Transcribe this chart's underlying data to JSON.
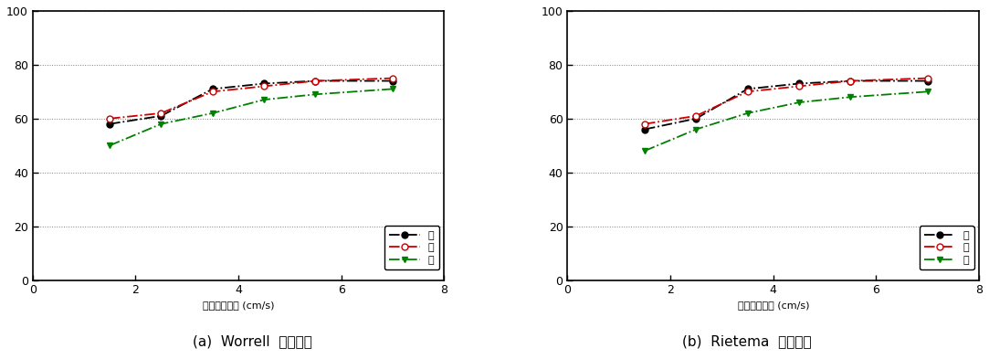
{
  "worrell": {
    "x": [
      1.5,
      2.5,
      3.5,
      4.5,
      5.5,
      7.0
    ],
    "A": [
      58,
      61,
      71,
      73,
      74,
      74
    ],
    "B": [
      60,
      62,
      70,
      72,
      74,
      75
    ],
    "C": [
      50,
      58,
      62,
      67,
      69,
      71
    ]
  },
  "rietema": {
    "x": [
      1.5,
      2.5,
      3.5,
      4.5,
      5.5,
      7.0
    ],
    "A": [
      56,
      60,
      71,
      73,
      74,
      74
    ],
    "B": [
      58,
      61,
      70,
      72,
      74,
      75
    ],
    "C": [
      48,
      56,
      62,
      66,
      68,
      70
    ]
  },
  "color_A": "#000000",
  "color_B": "#cc0000",
  "color_C": "#008000",
  "xlim": [
    0,
    8
  ],
  "ylim": [
    0,
    100
  ],
  "xticks": [
    0,
    2,
    4,
    6,
    8
  ],
  "yticks": [
    0,
    20,
    40,
    60,
    80,
    100
  ],
  "xlabel": "시료투입속도 (cm/s)",
  "legend_A": "가",
  "legend_B": "나",
  "legend_C": "다",
  "caption_a": "(a)  Worrell  선별효율",
  "caption_b": "(b)  Rietema  선별효율"
}
